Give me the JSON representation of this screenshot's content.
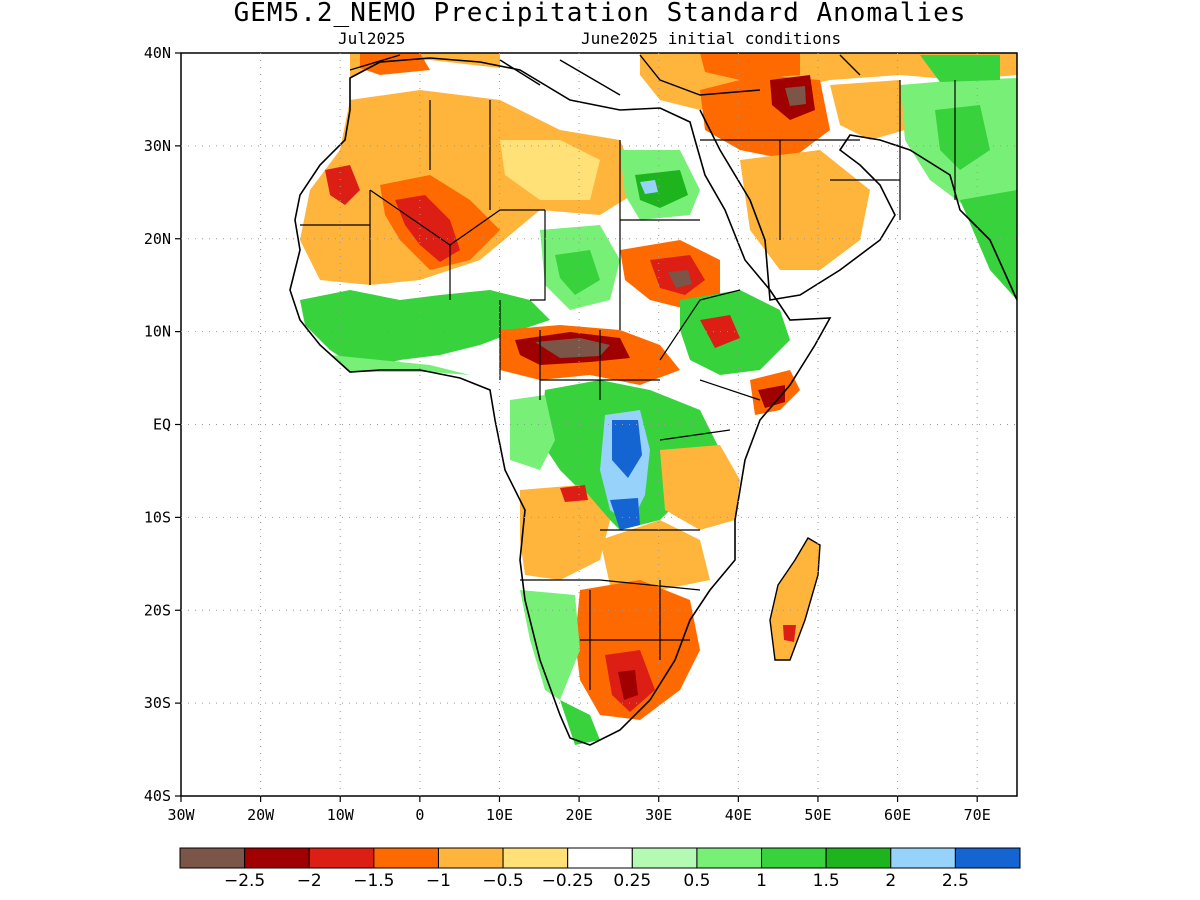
{
  "header": {
    "title": "GEM5.2_NEMO Precipitation Standard Anomalies",
    "valid_month": "Jul2025",
    "init_label": "June2025 initial conditions"
  },
  "axes": {
    "lat_labels": [
      "40N",
      "30N",
      "20N",
      "10N",
      "EQ",
      "10S",
      "20S",
      "30S",
      "40S"
    ],
    "lon_labels": [
      "30W",
      "20W",
      "10W",
      "0",
      "10E",
      "20E",
      "30E",
      "40E",
      "50E",
      "60E",
      "70E"
    ]
  },
  "legend": {
    "colors": [
      "#7a5548",
      "#a00000",
      "#dc1e14",
      "#ff6a00",
      "#ffb43c",
      "#ffe178",
      "#ffffff",
      "#b4fab4",
      "#78f078",
      "#37d23c",
      "#1eb41e",
      "#96d2fa",
      "#1464d2"
    ],
    "labels": [
      "-2.5",
      "-2",
      "-1.5",
      "-1",
      "-0.5",
      "-0.25",
      "0.25",
      "0.5",
      "1",
      "1.5",
      "2",
      "2.5"
    ]
  }
}
